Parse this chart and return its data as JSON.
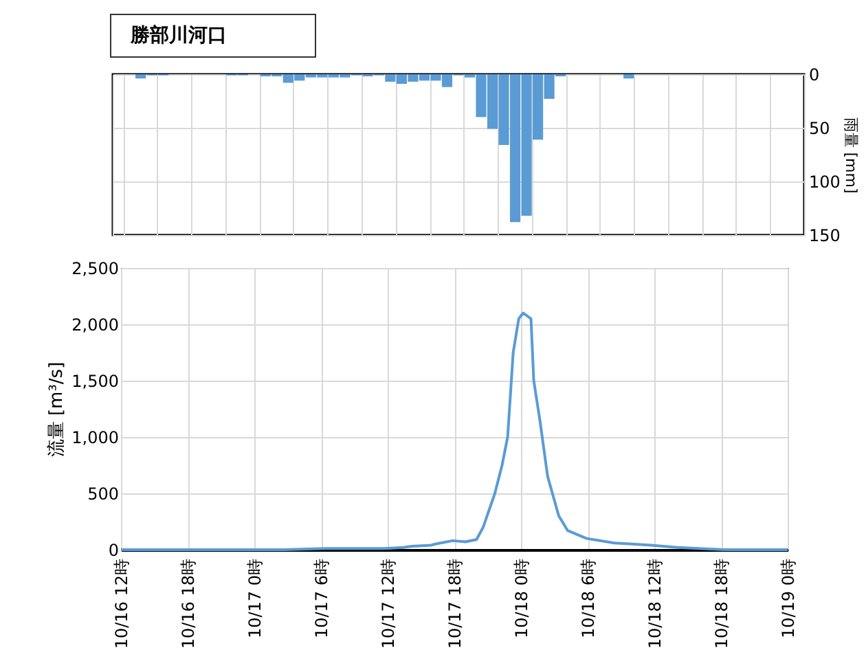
{
  "chart_data": [
    {
      "type": "bar",
      "title": "勝部川河口",
      "ylabel": "雨量 [mm]",
      "categories": [
        null,
        null,
        null,
        null,
        null,
        null,
        null,
        null,
        null,
        null,
        null,
        null,
        null,
        null,
        null,
        null,
        null,
        null,
        null,
        null,
        null,
        null,
        null,
        null,
        null,
        null,
        null,
        null,
        null,
        null,
        null,
        null,
        null,
        null,
        null,
        null,
        null,
        null,
        null,
        null,
        null,
        null,
        null,
        null,
        null,
        null,
        null,
        null,
        null,
        null,
        null,
        null,
        null,
        null,
        null,
        null,
        null,
        null,
        null,
        null,
        null
      ],
      "values": [
        0,
        0,
        4,
        1,
        1,
        0,
        0,
        0,
        0,
        0,
        1,
        1,
        0,
        2,
        2,
        8,
        6,
        3,
        3,
        3,
        3,
        1,
        2,
        1,
        7,
        9,
        7,
        6,
        6,
        12,
        1,
        3,
        40,
        51,
        66,
        138,
        132,
        61,
        23,
        2,
        0,
        0,
        0,
        0,
        0,
        4,
        0,
        0,
        0,
        0,
        0,
        0,
        0,
        0,
        0,
        0,
        0,
        0,
        0,
        0,
        0
      ],
      "color": "#5b9bd5",
      "ylim": [
        150,
        0
      ],
      "yticks": [
        0,
        50,
        100,
        150
      ],
      "grid": true,
      "tick_labels": "y"
    },
    {
      "type": "line",
      "ylabel": "流量 [m³/s]",
      "color": "#5b9bd5",
      "x": [
        "--10-16T12:00",
        "--10-17T02:00",
        "--10-17T02:42",
        "--10-17T06:24",
        "--10-17T11:45",
        "--10-17T13:24",
        "--10-17T14:12",
        "--10-17T15:54",
        "--10-17T16:18",
        "--10-17T17:51",
        "--10-17T19:00",
        "--10-17T20:00",
        "--10-17T20:36",
        "--10-17T21:39",
        "--10-17T22:18",
        "--10-17T22:48",
        "--10-17T23:18",
        "--10-17T23:48",
        "--10-18T00:12",
        "--10-18T00:54",
        "--10-18T01:09",
        "--10-18T01:42",
        "--10-18T02:24",
        "--10-18T03:24",
        "--10-18T04:12",
        "--10-18T05:54",
        "--10-18T08:24",
        "--10-18T10:00",
        "--10-18T11:42",
        "--10-18T14:06",
        "--10-18T18:18",
        "--10-19T00:00"
      ],
      "values": [
        0,
        0,
        0,
        10,
        10,
        20,
        30,
        40,
        50,
        80,
        70,
        90,
        200,
        500,
        750,
        1000,
        1750,
        2050,
        2100,
        2050,
        1500,
        1150,
        650,
        300,
        170,
        100,
        60,
        50,
        40,
        20,
        0,
        0
      ],
      "xlim": [
        "--10-16T12:00",
        "--10-19T00:00"
      ],
      "xticks": [
        {
          "value": "--10-16T12:00",
          "label": "10/16 12時"
        },
        {
          "value": "--10-16T18:00",
          "label": "10/16 18時"
        },
        {
          "value": "--10-17T00:00",
          "label": "10/17 0時"
        },
        {
          "value": "--10-17T06:00",
          "label": "10/17 6時"
        },
        {
          "value": "--10-17T12:00",
          "label": "10/17 12時"
        },
        {
          "value": "--10-17T18:00",
          "label": "10/17 18時"
        },
        {
          "value": "--10-18T00:00",
          "label": "10/18 0時"
        },
        {
          "value": "--10-18T06:00",
          "label": "10/18 6時"
        },
        {
          "value": "--10-18T12:00",
          "label": "10/18 12時"
        },
        {
          "value": "--10-18T18:00",
          "label": "10/18 18時"
        },
        {
          "value": "--10-19T00:00",
          "label": "10/19 0時"
        }
      ],
      "ylim": [
        0,
        2500
      ],
      "yticks": [
        0,
        500,
        {
          "value": 1000,
          "label": "1,000"
        },
        {
          "value": 1500,
          "label": "1,500"
        },
        {
          "value": 2000,
          "label": "2,000"
        },
        {
          "value": 2500,
          "label": "2,500"
        }
      ],
      "grid": true
    }
  ]
}
